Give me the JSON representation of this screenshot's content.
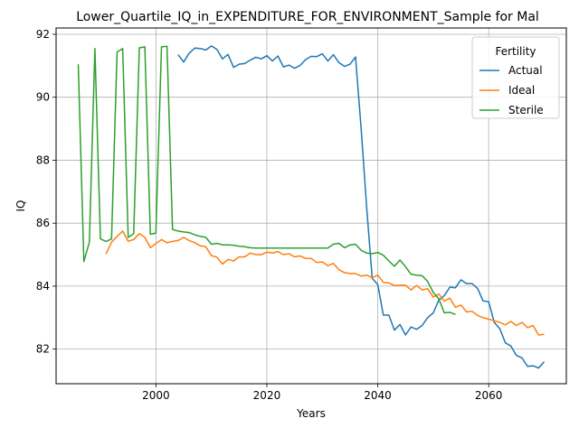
{
  "chart_data": {
    "type": "line",
    "title": "Lower_Quartile_IQ_in_EXPENDITURE_FOR_ENVIRONMENT_Sample for Mal",
    "xlabel": "Years",
    "ylabel": "IQ",
    "xlim": [
      1982,
      2074
    ],
    "ylim": [
      80.9,
      92.2
    ],
    "xticks": [
      2000,
      2020,
      2040,
      2060
    ],
    "yticks": [
      82,
      84,
      86,
      88,
      90,
      92
    ],
    "grid": true,
    "legend": {
      "title": "Fertility",
      "placement": "top-right"
    },
    "series": [
      {
        "name": "Actual",
        "color": "#1f77b4",
        "points": [
          [
            2004,
            91.35
          ],
          [
            2005,
            91.12
          ],
          [
            2006,
            91.4
          ],
          [
            2007,
            91.56
          ],
          [
            2008,
            91.55
          ],
          [
            2009,
            91.5
          ],
          [
            2010,
            91.63
          ],
          [
            2011,
            91.52
          ],
          [
            2012,
            91.22
          ],
          [
            2013,
            91.36
          ],
          [
            2014,
            90.95
          ],
          [
            2015,
            91.05
          ],
          [
            2016,
            91.07
          ],
          [
            2017,
            91.18
          ],
          [
            2018,
            91.27
          ],
          [
            2019,
            91.22
          ],
          [
            2020,
            91.32
          ],
          [
            2021,
            91.15
          ],
          [
            2022,
            91.31
          ],
          [
            2023,
            90.96
          ],
          [
            2024,
            91.02
          ],
          [
            2025,
            90.92
          ],
          [
            2026,
            91.01
          ],
          [
            2027,
            91.2
          ],
          [
            2028,
            91.3
          ],
          [
            2029,
            91.29
          ],
          [
            2030,
            91.38
          ],
          [
            2031,
            91.15
          ],
          [
            2032,
            91.35
          ],
          [
            2033,
            91.1
          ],
          [
            2034,
            90.98
          ],
          [
            2035,
            91.05
          ],
          [
            2036,
            91.28
          ],
          [
            2037,
            89.0
          ],
          [
            2038,
            86.5
          ],
          [
            2039,
            84.25
          ],
          [
            2040,
            84.05
          ],
          [
            2041,
            83.08
          ],
          [
            2042,
            83.08
          ],
          [
            2043,
            82.6
          ],
          [
            2044,
            82.78
          ],
          [
            2045,
            82.45
          ],
          [
            2046,
            82.7
          ],
          [
            2047,
            82.63
          ],
          [
            2048,
            82.75
          ],
          [
            2049,
            83.0
          ],
          [
            2050,
            83.15
          ],
          [
            2051,
            83.55
          ],
          [
            2052,
            83.7
          ],
          [
            2053,
            83.97
          ],
          [
            2054,
            83.95
          ],
          [
            2055,
            84.2
          ],
          [
            2056,
            84.08
          ],
          [
            2057,
            84.08
          ],
          [
            2058,
            83.93
          ],
          [
            2059,
            83.53
          ],
          [
            2060,
            83.5
          ],
          [
            2061,
            82.85
          ],
          [
            2062,
            82.65
          ],
          [
            2063,
            82.2
          ],
          [
            2064,
            82.1
          ],
          [
            2065,
            81.8
          ],
          [
            2066,
            81.72
          ],
          [
            2067,
            81.45
          ],
          [
            2068,
            81.47
          ],
          [
            2069,
            81.4
          ],
          [
            2070,
            81.6
          ]
        ]
      },
      {
        "name": "Ideal",
        "color": "#ff7f0e",
        "points": [
          [
            1991,
            85.02
          ],
          [
            1992,
            85.4
          ],
          [
            1993,
            85.58
          ],
          [
            1994,
            85.75
          ],
          [
            1995,
            85.43
          ],
          [
            1996,
            85.48
          ],
          [
            1997,
            85.67
          ],
          [
            1998,
            85.55
          ],
          [
            1999,
            85.22
          ],
          [
            2000,
            85.35
          ],
          [
            2001,
            85.48
          ],
          [
            2002,
            85.38
          ],
          [
            2003,
            85.42
          ],
          [
            2004,
            85.45
          ],
          [
            2005,
            85.55
          ],
          [
            2006,
            85.45
          ],
          [
            2007,
            85.38
          ],
          [
            2008,
            85.28
          ],
          [
            2009,
            85.25
          ],
          [
            2010,
            84.97
          ],
          [
            2011,
            84.92
          ],
          [
            2012,
            84.7
          ],
          [
            2013,
            84.85
          ],
          [
            2014,
            84.8
          ],
          [
            2015,
            84.93
          ],
          [
            2016,
            84.93
          ],
          [
            2017,
            85.05
          ],
          [
            2018,
            85.0
          ],
          [
            2019,
            85.0
          ],
          [
            2020,
            85.08
          ],
          [
            2021,
            85.05
          ],
          [
            2022,
            85.1
          ],
          [
            2023,
            85.0
          ],
          [
            2024,
            85.03
          ],
          [
            2025,
            84.93
          ],
          [
            2026,
            84.96
          ],
          [
            2027,
            84.88
          ],
          [
            2028,
            84.88
          ],
          [
            2029,
            84.75
          ],
          [
            2030,
            84.77
          ],
          [
            2031,
            84.65
          ],
          [
            2032,
            84.72
          ],
          [
            2033,
            84.52
          ],
          [
            2034,
            84.43
          ],
          [
            2035,
            84.4
          ],
          [
            2036,
            84.4
          ],
          [
            2037,
            84.32
          ],
          [
            2038,
            84.35
          ],
          [
            2039,
            84.27
          ],
          [
            2040,
            84.35
          ],
          [
            2041,
            84.12
          ],
          [
            2042,
            84.1
          ],
          [
            2043,
            84.02
          ],
          [
            2044,
            84.03
          ],
          [
            2045,
            84.03
          ],
          [
            2046,
            83.88
          ],
          [
            2047,
            84.02
          ],
          [
            2048,
            83.88
          ],
          [
            2049,
            83.92
          ],
          [
            2050,
            83.65
          ],
          [
            2051,
            83.75
          ],
          [
            2052,
            83.52
          ],
          [
            2053,
            83.62
          ],
          [
            2054,
            83.33
          ],
          [
            2055,
            83.4
          ],
          [
            2056,
            83.18
          ],
          [
            2057,
            83.2
          ],
          [
            2058,
            83.07
          ],
          [
            2059,
            83.0
          ],
          [
            2060,
            82.95
          ],
          [
            2061,
            82.9
          ],
          [
            2062,
            82.85
          ],
          [
            2063,
            82.77
          ],
          [
            2064,
            82.88
          ],
          [
            2065,
            82.75
          ],
          [
            2066,
            82.85
          ],
          [
            2067,
            82.68
          ],
          [
            2068,
            82.75
          ],
          [
            2069,
            82.45
          ],
          [
            2070,
            82.47
          ]
        ]
      },
      {
        "name": "Sterile",
        "color": "#2ca02c",
        "points": [
          [
            1986,
            91.05
          ],
          [
            1987,
            84.78
          ],
          [
            1988,
            85.4
          ],
          [
            1989,
            91.55
          ],
          [
            1990,
            85.5
          ],
          [
            1991,
            85.42
          ],
          [
            1992,
            85.5
          ],
          [
            1993,
            91.43
          ],
          [
            1994,
            91.55
          ],
          [
            1995,
            85.55
          ],
          [
            1996,
            85.67
          ],
          [
            1997,
            91.57
          ],
          [
            1998,
            91.6
          ],
          [
            1999,
            85.65
          ],
          [
            2000,
            85.68
          ],
          [
            2001,
            91.6
          ],
          [
            2002,
            91.62
          ],
          [
            2003,
            85.8
          ],
          [
            2004,
            85.75
          ],
          [
            2005,
            85.72
          ],
          [
            2006,
            85.7
          ],
          [
            2007,
            85.63
          ],
          [
            2008,
            85.58
          ],
          [
            2009,
            85.55
          ],
          [
            2010,
            85.33
          ],
          [
            2011,
            85.36
          ],
          [
            2012,
            85.31
          ],
          [
            2013,
            85.31
          ],
          [
            2014,
            85.3
          ],
          [
            2015,
            85.27
          ],
          [
            2016,
            85.25
          ],
          [
            2017,
            85.22
          ],
          [
            2018,
            85.21
          ],
          [
            2019,
            85.21
          ],
          [
            2020,
            85.21
          ],
          [
            2021,
            85.21
          ],
          [
            2022,
            85.21
          ],
          [
            2023,
            85.21
          ],
          [
            2024,
            85.21
          ],
          [
            2025,
            85.21
          ],
          [
            2026,
            85.21
          ],
          [
            2027,
            85.21
          ],
          [
            2028,
            85.21
          ],
          [
            2029,
            85.21
          ],
          [
            2030,
            85.21
          ],
          [
            2031,
            85.21
          ],
          [
            2032,
            85.33
          ],
          [
            2033,
            85.36
          ],
          [
            2034,
            85.22
          ],
          [
            2035,
            85.31
          ],
          [
            2036,
            85.33
          ],
          [
            2037,
            85.14
          ],
          [
            2038,
            85.05
          ],
          [
            2039,
            85.03
          ],
          [
            2040,
            85.07
          ],
          [
            2041,
            84.98
          ],
          [
            2042,
            84.8
          ],
          [
            2043,
            84.63
          ],
          [
            2044,
            84.83
          ],
          [
            2045,
            84.62
          ],
          [
            2046,
            84.38
          ],
          [
            2047,
            84.35
          ],
          [
            2048,
            84.33
          ],
          [
            2049,
            84.15
          ],
          [
            2050,
            83.8
          ],
          [
            2051,
            83.6
          ],
          [
            2052,
            83.15
          ],
          [
            2053,
            83.17
          ],
          [
            2054,
            83.1
          ]
        ]
      }
    ]
  }
}
